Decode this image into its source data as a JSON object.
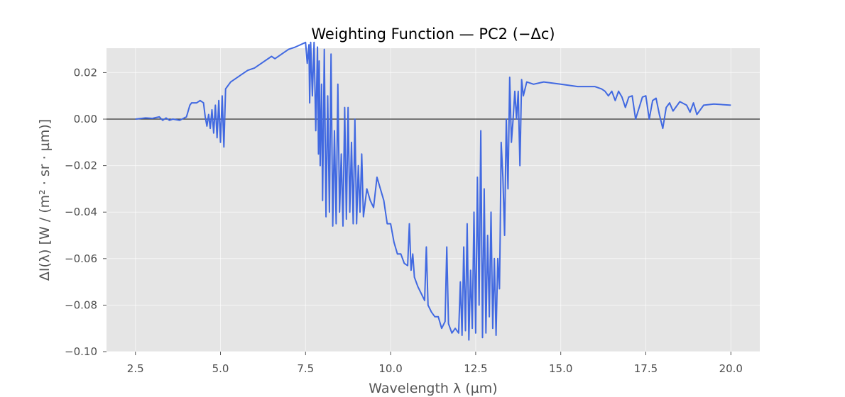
{
  "chart_data": {
    "type": "line",
    "title": "Weighting Function — PC2 (−Δc)",
    "xlabel": "Wavelength λ (µm)",
    "ylabel": "ΔI(λ) [W / (m² · sr · µm)]",
    "xlim": [
      1.65,
      20.85
    ],
    "ylim": [
      -0.1,
      0.0305
    ],
    "xticks": [
      2.5,
      5.0,
      7.5,
      10.0,
      12.5,
      15.0,
      17.5,
      20.0
    ],
    "xtick_labels": [
      "2.5",
      "5.0",
      "7.5",
      "10.0",
      "12.5",
      "15.0",
      "17.5",
      "20.0"
    ],
    "yticks": [
      0.02,
      0.0,
      -0.02,
      -0.04,
      -0.06,
      -0.08,
      -0.1
    ],
    "ytick_labels": [
      "0.02",
      "0.00",
      "−0.02",
      "−0.04",
      "−0.06",
      "−0.08",
      "−0.10"
    ],
    "grid": true,
    "reference_line_y": 0,
    "colors": {
      "series": "#4169e1",
      "plot_bg": "#e5e5e5",
      "grid": "#ffffff",
      "reference_line": "#333333"
    },
    "series": [
      {
        "x": [
          2.5,
          2.8,
          3.0,
          3.2,
          3.3,
          3.4,
          3.5,
          3.6,
          3.8,
          4.0,
          4.1,
          4.15,
          4.3,
          4.4,
          4.5,
          4.55,
          4.6,
          4.65,
          4.7,
          4.75,
          4.8,
          4.85,
          4.9,
          4.95,
          5.0,
          5.05,
          5.1,
          5.15,
          5.2,
          5.25,
          5.3,
          5.4,
          5.6,
          5.8,
          6.0,
          6.5,
          6.6,
          6.8,
          7.0,
          7.2,
          7.35,
          7.5,
          7.55,
          7.6,
          7.62,
          7.65,
          7.7,
          7.75,
          7.8,
          7.85,
          7.88,
          7.9,
          7.93,
          7.97,
          8.0,
          8.05,
          8.1,
          8.15,
          8.2,
          8.25,
          8.3,
          8.35,
          8.4,
          8.45,
          8.5,
          8.55,
          8.6,
          8.65,
          8.7,
          8.75,
          8.8,
          8.85,
          8.9,
          8.95,
          9.0,
          9.05,
          9.1,
          9.15,
          9.2,
          9.3,
          9.4,
          9.5,
          9.6,
          9.8,
          9.9,
          10.0,
          10.1,
          10.2,
          10.3,
          10.4,
          10.5,
          10.55,
          10.6,
          10.65,
          10.7,
          10.8,
          10.9,
          11.0,
          11.05,
          11.1,
          11.2,
          11.3,
          11.4,
          11.5,
          11.6,
          11.65,
          11.7,
          11.8,
          11.9,
          12.0,
          12.05,
          12.1,
          12.15,
          12.2,
          12.25,
          12.3,
          12.35,
          12.4,
          12.45,
          12.5,
          12.55,
          12.6,
          12.65,
          12.7,
          12.75,
          12.8,
          12.85,
          12.9,
          12.95,
          13.0,
          13.05,
          13.1,
          13.15,
          13.2,
          13.22,
          13.25,
          13.3,
          13.35,
          13.4,
          13.45,
          13.5,
          13.55,
          13.6,
          13.65,
          13.7,
          13.75,
          13.8,
          13.85,
          13.9,
          14.0,
          14.2,
          14.5,
          15.0,
          15.5,
          16.0,
          16.2,
          16.3,
          16.4,
          16.5,
          16.6,
          16.7,
          16.8,
          16.9,
          17.0,
          17.1,
          17.2,
          17.4,
          17.5,
          17.6,
          17.7,
          17.8,
          17.9,
          18.0,
          18.1,
          18.2,
          18.3,
          18.5,
          18.7,
          18.8,
          18.9,
          19.0,
          19.2,
          19.5,
          20.0
        ],
        "values": [
          0.0,
          0.0005,
          0.0003,
          0.001,
          -0.0005,
          0.0005,
          -0.0005,
          0.0,
          -0.0005,
          0.001,
          0.006,
          0.007,
          0.007,
          0.008,
          0.007,
          0.001,
          -0.003,
          0.002,
          -0.004,
          0.004,
          -0.006,
          0.006,
          -0.008,
          0.008,
          -0.01,
          0.01,
          -0.012,
          0.013,
          0.014,
          0.015,
          0.016,
          0.017,
          0.019,
          0.021,
          0.022,
          0.027,
          0.026,
          0.028,
          0.03,
          0.031,
          0.032,
          0.033,
          0.024,
          0.032,
          0.007,
          0.033,
          0.01,
          0.033,
          -0.005,
          0.031,
          -0.015,
          0.025,
          -0.02,
          0.015,
          -0.035,
          0.03,
          -0.042,
          0.01,
          -0.04,
          0.028,
          -0.046,
          -0.005,
          -0.045,
          0.015,
          -0.04,
          -0.015,
          -0.046,
          0.005,
          -0.043,
          0.005,
          -0.04,
          -0.01,
          -0.045,
          0.0,
          -0.045,
          -0.02,
          -0.04,
          -0.015,
          -0.042,
          -0.03,
          -0.035,
          -0.038,
          -0.025,
          -0.035,
          -0.045,
          -0.045,
          -0.053,
          -0.058,
          -0.058,
          -0.062,
          -0.063,
          -0.045,
          -0.065,
          -0.058,
          -0.068,
          -0.072,
          -0.075,
          -0.078,
          -0.055,
          -0.08,
          -0.083,
          -0.085,
          -0.085,
          -0.09,
          -0.087,
          -0.055,
          -0.088,
          -0.092,
          -0.09,
          -0.092,
          -0.07,
          -0.093,
          -0.055,
          -0.091,
          -0.045,
          -0.095,
          -0.065,
          -0.09,
          -0.04,
          -0.092,
          -0.025,
          -0.08,
          -0.005,
          -0.094,
          -0.03,
          -0.092,
          -0.05,
          -0.085,
          -0.04,
          -0.09,
          -0.06,
          -0.093,
          -0.06,
          -0.073,
          -0.05,
          -0.01,
          -0.025,
          -0.05,
          0.0,
          -0.03,
          0.018,
          -0.01,
          0.0,
          0.012,
          0.0,
          0.012,
          -0.02,
          0.017,
          0.01,
          0.016,
          0.015,
          0.016,
          0.015,
          0.014,
          0.014,
          0.013,
          0.012,
          0.01,
          0.012,
          0.008,
          0.012,
          0.0095,
          0.005,
          0.0095,
          0.01,
          0.0,
          0.0095,
          0.01,
          0.0,
          0.008,
          0.009,
          0.002,
          -0.004,
          0.005,
          0.007,
          0.0035,
          0.0075,
          0.006,
          0.003,
          0.007,
          0.002,
          0.006,
          0.0065,
          0.006
        ]
      }
    ]
  }
}
